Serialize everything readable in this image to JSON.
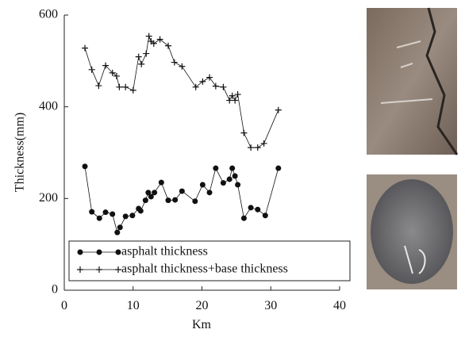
{
  "chart_data": {
    "type": "line",
    "y_label": "Thickness(mm)",
    "x_label": "Km",
    "xlim": [
      0,
      40
    ],
    "xticks": [
      0,
      10,
      20,
      30,
      40
    ],
    "ylim": [
      0,
      600
    ],
    "yticks": [
      0,
      200,
      400,
      600
    ],
    "legend": "lower left",
    "series": [
      {
        "name": "asphalt thickness",
        "color": "#111111",
        "marker": "dot",
        "x": [
          3.0,
          4.0,
          5.1,
          6.0,
          7.0,
          7.7,
          8.1,
          8.9,
          9.9,
          10.8,
          11.1,
          11.8,
          12.2,
          12.6,
          13.1,
          14.1,
          15.1,
          16.1,
          17.1,
          19.0,
          20.1,
          21.1,
          22.0,
          23.1,
          24.0,
          24.4,
          24.8,
          25.2,
          26.1,
          27.1,
          28.1,
          29.2,
          31.1
        ],
        "values": [
          270,
          171,
          157,
          170,
          166,
          126,
          137,
          161,
          163,
          178,
          173,
          196,
          213,
          204,
          213,
          235,
          196,
          197,
          216,
          194,
          230,
          213,
          266,
          234,
          242,
          266,
          249,
          230,
          157,
          180,
          176,
          163,
          266
        ]
      },
      {
        "name": "asphalt thickness+base thickness",
        "color": "#111111",
        "marker": "plus",
        "x": [
          3.0,
          4.0,
          5.0,
          6.0,
          7.0,
          7.6,
          8.0,
          8.9,
          10.0,
          10.8,
          11.2,
          11.9,
          12.3,
          12.6,
          13.0,
          13.9,
          15.1,
          16.0,
          17.1,
          19.1,
          20.1,
          21.1,
          22.0,
          23.1,
          24.0,
          24.4,
          24.8,
          25.2,
          26.1,
          27.1,
          28.1,
          29.0,
          31.1
        ],
        "values": [
          528,
          481,
          446,
          490,
          474,
          467,
          443,
          443,
          436,
          509,
          493,
          516,
          554,
          543,
          538,
          547,
          533,
          497,
          488,
          443,
          455,
          464,
          445,
          443,
          414,
          424,
          414,
          427,
          343,
          311,
          311,
          320,
          393
        ]
      }
    ]
  }
}
